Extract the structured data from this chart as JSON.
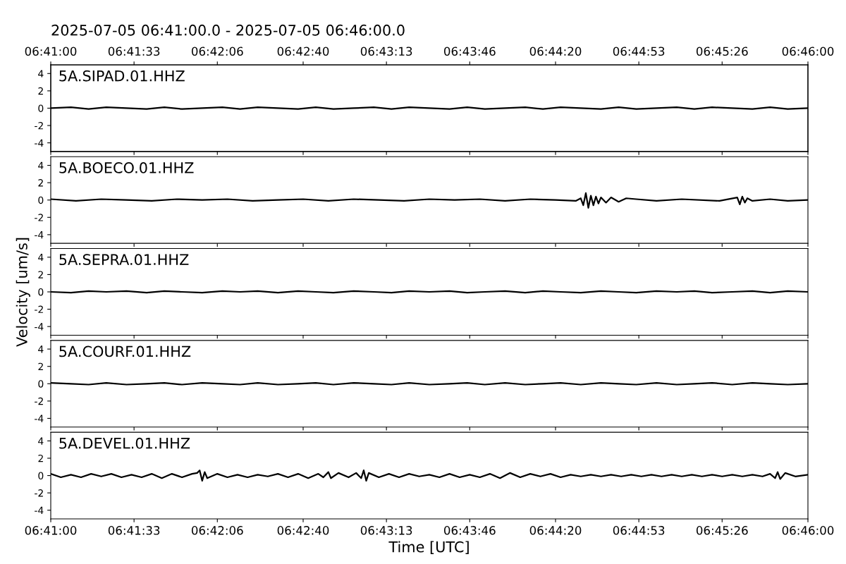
{
  "chart_data": [
    {
      "type": "line",
      "title": "2025-07-05 06:41:00.0 - 2025-07-05 06:46:00.0",
      "xlim": [
        "2025-07-05T06:41:00",
        "2025-07-05T06:46:00"
      ],
      "ylim": [
        -5,
        5
      ],
      "yticks": [
        -4,
        -2,
        0,
        2,
        4
      ],
      "tick_labels": "y",
      "xticks": [
        {
          "value": "2025-07-05T06:41:00",
          "label": null
        },
        {
          "value": "2025-07-05T06:41:33",
          "label": null
        },
        {
          "value": "2025-07-05T06:42:06",
          "label": null
        },
        {
          "value": "2025-07-05T06:42:40",
          "label": null
        },
        {
          "value": "2025-07-05T06:43:13",
          "label": null
        },
        {
          "value": "2025-07-05T06:43:46",
          "label": null
        },
        {
          "value": "2025-07-05T06:44:20",
          "label": null
        },
        {
          "value": "2025-07-05T06:44:53",
          "label": null
        },
        {
          "value": "2025-07-05T06:45:26",
          "label": null
        },
        {
          "value": "2025-07-05T06:46:00",
          "label": null
        }
      ],
      "x2lim": [
        "2025-07-05T06:41:00",
        "2025-07-05T06:46:00"
      ],
      "x2ticks": [
        {
          "value": "2025-07-05T06:41:00",
          "label": "06:41:00"
        },
        {
          "value": "2025-07-05T06:41:33",
          "label": "06:41:33"
        },
        {
          "value": "2025-07-05T06:42:06",
          "label": "06:42:06"
        },
        {
          "value": "2025-07-05T06:42:40",
          "label": "06:42:40"
        },
        {
          "value": "2025-07-05T06:43:13",
          "label": "06:43:13"
        },
        {
          "value": "2025-07-05T06:43:46",
          "label": "06:43:46"
        },
        {
          "value": "2025-07-05T06:44:20",
          "label": "06:44:20"
        },
        {
          "value": "2025-07-05T06:44:53",
          "label": "06:44:53"
        },
        {
          "value": "2025-07-05T06:45:26",
          "label": "06:45:26"
        },
        {
          "value": "2025-07-05T06:46:00",
          "label": "06:46:00"
        }
      ],
      "series": [
        {
          "name": "5A.SIPAD.01.HHZ",
          "color": "#000000",
          "x": [
            "2025-07-05T06:41:00",
            "2025-07-05T06:41:08",
            "2025-07-05T06:41:15",
            "2025-07-05T06:41:22",
            "2025-07-05T06:41:30",
            "2025-07-05T06:41:38",
            "2025-07-05T06:41:45",
            "2025-07-05T06:41:52",
            "2025-07-05T06:42:00",
            "2025-07-05T06:42:08",
            "2025-07-05T06:42:15",
            "2025-07-05T06:42:22",
            "2025-07-05T06:42:30",
            "2025-07-05T06:42:38",
            "2025-07-05T06:42:45",
            "2025-07-05T06:42:52",
            "2025-07-05T06:43:00",
            "2025-07-05T06:43:08",
            "2025-07-05T06:43:15",
            "2025-07-05T06:43:22",
            "2025-07-05T06:43:30",
            "2025-07-05T06:43:38",
            "2025-07-05T06:43:45",
            "2025-07-05T06:43:52",
            "2025-07-05T06:44:00",
            "2025-07-05T06:44:08",
            "2025-07-05T06:44:15",
            "2025-07-05T06:44:22",
            "2025-07-05T06:44:30",
            "2025-07-05T06:44:38",
            "2025-07-05T06:44:45",
            "2025-07-05T06:44:52",
            "2025-07-05T06:45:00",
            "2025-07-05T06:45:08",
            "2025-07-05T06:45:15",
            "2025-07-05T06:45:22",
            "2025-07-05T06:45:30",
            "2025-07-05T06:45:38",
            "2025-07-05T06:45:45",
            "2025-07-05T06:45:52",
            "2025-07-05T06:46:00"
          ],
          "values": [
            0,
            0.1,
            -0.1,
            0.1,
            0,
            -0.1,
            0.1,
            -0.1,
            0,
            0.1,
            -0.1,
            0.1,
            0,
            -0.1,
            0.1,
            -0.1,
            0,
            0.1,
            -0.1,
            0.1,
            0,
            -0.1,
            0.1,
            -0.1,
            0,
            0.1,
            -0.1,
            0.1,
            0,
            -0.1,
            0.1,
            -0.1,
            0,
            0.1,
            -0.1,
            0.1,
            0,
            -0.1,
            0.1,
            -0.1,
            0
          ]
        }
      ]
    },
    {
      "type": "line",
      "xlim": [
        "2025-07-05T06:41:00",
        "2025-07-05T06:46:00"
      ],
      "ylim": [
        -5,
        5
      ],
      "yticks": [
        -4,
        -2,
        0,
        2,
        4
      ],
      "tick_labels": "y",
      "xticks": [
        {
          "value": "2025-07-05T06:41:00",
          "label": null
        },
        {
          "value": "2025-07-05T06:41:33",
          "label": null
        },
        {
          "value": "2025-07-05T06:42:06",
          "label": null
        },
        {
          "value": "2025-07-05T06:42:40",
          "label": null
        },
        {
          "value": "2025-07-05T06:43:13",
          "label": null
        },
        {
          "value": "2025-07-05T06:43:46",
          "label": null
        },
        {
          "value": "2025-07-05T06:44:20",
          "label": null
        },
        {
          "value": "2025-07-05T06:44:53",
          "label": null
        },
        {
          "value": "2025-07-05T06:45:26",
          "label": null
        },
        {
          "value": "2025-07-05T06:46:00",
          "label": null
        }
      ],
      "series": [
        {
          "name": "5A.BOECO.01.HHZ",
          "color": "#000000",
          "x": [
            "2025-07-05T06:41:00",
            "2025-07-05T06:41:10",
            "2025-07-05T06:41:20",
            "2025-07-05T06:41:30",
            "2025-07-05T06:41:40",
            "2025-07-05T06:41:50",
            "2025-07-05T06:42:00",
            "2025-07-05T06:42:10",
            "2025-07-05T06:42:20",
            "2025-07-05T06:42:30",
            "2025-07-05T06:42:40",
            "2025-07-05T06:42:50",
            "2025-07-05T06:43:00",
            "2025-07-05T06:43:10",
            "2025-07-05T06:43:20",
            "2025-07-05T06:43:30",
            "2025-07-05T06:43:40",
            "2025-07-05T06:43:50",
            "2025-07-05T06:44:00",
            "2025-07-05T06:44:10",
            "2025-07-05T06:44:20",
            "2025-07-05T06:44:28",
            "2025-07-05T06:44:30",
            "2025-07-05T06:44:31",
            "2025-07-05T06:44:32",
            "2025-07-05T06:44:33",
            "2025-07-05T06:44:34",
            "2025-07-05T06:44:35",
            "2025-07-05T06:44:36",
            "2025-07-05T06:44:37",
            "2025-07-05T06:44:38",
            "2025-07-05T06:44:40",
            "2025-07-05T06:44:42",
            "2025-07-05T06:44:45",
            "2025-07-05T06:44:48",
            "2025-07-05T06:44:52",
            "2025-07-05T06:45:00",
            "2025-07-05T06:45:10",
            "2025-07-05T06:45:25",
            "2025-07-05T06:45:32",
            "2025-07-05T06:45:33",
            "2025-07-05T06:45:34",
            "2025-07-05T06:45:35",
            "2025-07-05T06:45:36",
            "2025-07-05T06:45:38",
            "2025-07-05T06:45:45",
            "2025-07-05T06:45:52",
            "2025-07-05T06:46:00"
          ],
          "values": [
            0.1,
            -0.1,
            0.1,
            0,
            -0.1,
            0.1,
            0,
            0.1,
            -0.1,
            0,
            0.1,
            -0.1,
            0.1,
            0,
            -0.1,
            0.1,
            0,
            0.1,
            -0.1,
            0.1,
            0,
            -0.1,
            0.2,
            -0.6,
            0.8,
            -0.9,
            0.5,
            -0.6,
            0.4,
            -0.4,
            0.3,
            -0.3,
            0.3,
            -0.2,
            0.2,
            0.1,
            -0.1,
            0.1,
            -0.1,
            0.3,
            -0.5,
            0.4,
            -0.3,
            0.2,
            -0.1,
            0.1,
            -0.1,
            0
          ]
        }
      ]
    },
    {
      "type": "line",
      "xlim": [
        "2025-07-05T06:41:00",
        "2025-07-05T06:46:00"
      ],
      "ylim": [
        -5,
        5
      ],
      "yticks": [
        -4,
        -2,
        0,
        2,
        4
      ],
      "tick_labels": "y",
      "ylabel": "Velocity [um/s]",
      "xticks": [
        {
          "value": "2025-07-05T06:41:00",
          "label": null
        },
        {
          "value": "2025-07-05T06:41:33",
          "label": null
        },
        {
          "value": "2025-07-05T06:42:06",
          "label": null
        },
        {
          "value": "2025-07-05T06:42:40",
          "label": null
        },
        {
          "value": "2025-07-05T06:43:13",
          "label": null
        },
        {
          "value": "2025-07-05T06:43:46",
          "label": null
        },
        {
          "value": "2025-07-05T06:44:20",
          "label": null
        },
        {
          "value": "2025-07-05T06:44:53",
          "label": null
        },
        {
          "value": "2025-07-05T06:45:26",
          "label": null
        },
        {
          "value": "2025-07-05T06:46:00",
          "label": null
        }
      ],
      "series": [
        {
          "name": "5A.SEPRA.01.HHZ",
          "color": "#000000",
          "x": [
            "2025-07-05T06:41:00",
            "2025-07-05T06:41:08",
            "2025-07-05T06:41:15",
            "2025-07-05T06:41:22",
            "2025-07-05T06:41:30",
            "2025-07-05T06:41:38",
            "2025-07-05T06:41:45",
            "2025-07-05T06:41:52",
            "2025-07-05T06:42:00",
            "2025-07-05T06:42:08",
            "2025-07-05T06:42:15",
            "2025-07-05T06:42:22",
            "2025-07-05T06:42:30",
            "2025-07-05T06:42:38",
            "2025-07-05T06:42:45",
            "2025-07-05T06:42:52",
            "2025-07-05T06:43:00",
            "2025-07-05T06:43:08",
            "2025-07-05T06:43:15",
            "2025-07-05T06:43:22",
            "2025-07-05T06:43:30",
            "2025-07-05T06:43:38",
            "2025-07-05T06:43:45",
            "2025-07-05T06:43:52",
            "2025-07-05T06:44:00",
            "2025-07-05T06:44:08",
            "2025-07-05T06:44:15",
            "2025-07-05T06:44:22",
            "2025-07-05T06:44:30",
            "2025-07-05T06:44:38",
            "2025-07-05T06:44:45",
            "2025-07-05T06:44:52",
            "2025-07-05T06:45:00",
            "2025-07-05T06:45:08",
            "2025-07-05T06:45:15",
            "2025-07-05T06:45:22",
            "2025-07-05T06:45:30",
            "2025-07-05T06:45:38",
            "2025-07-05T06:45:45",
            "2025-07-05T06:45:52",
            "2025-07-05T06:46:00"
          ],
          "values": [
            0,
            -0.1,
            0.1,
            0,
            0.1,
            -0.1,
            0.1,
            0,
            -0.1,
            0.1,
            0,
            0.1,
            -0.1,
            0.1,
            0,
            -0.1,
            0.1,
            0,
            -0.1,
            0.1,
            0,
            0.1,
            -0.1,
            0,
            0.1,
            -0.1,
            0.1,
            0,
            -0.1,
            0.1,
            0,
            -0.1,
            0.1,
            0,
            0.1,
            -0.1,
            0,
            0.1,
            -0.1,
            0.1,
            0
          ]
        }
      ]
    },
    {
      "type": "line",
      "xlim": [
        "2025-07-05T06:41:00",
        "2025-07-05T06:46:00"
      ],
      "ylim": [
        -5,
        5
      ],
      "yticks": [
        -4,
        -2,
        0,
        2,
        4
      ],
      "tick_labels": "y",
      "xticks": [
        {
          "value": "2025-07-05T06:41:00",
          "label": null
        },
        {
          "value": "2025-07-05T06:41:33",
          "label": null
        },
        {
          "value": "2025-07-05T06:42:06",
          "label": null
        },
        {
          "value": "2025-07-05T06:42:40",
          "label": null
        },
        {
          "value": "2025-07-05T06:43:13",
          "label": null
        },
        {
          "value": "2025-07-05T06:43:46",
          "label": null
        },
        {
          "value": "2025-07-05T06:44:20",
          "label": null
        },
        {
          "value": "2025-07-05T06:44:53",
          "label": null
        },
        {
          "value": "2025-07-05T06:45:26",
          "label": null
        },
        {
          "value": "2025-07-05T06:46:00",
          "label": null
        }
      ],
      "series": [
        {
          "name": "5A.COURF.01.HHZ",
          "color": "#000000",
          "x": [
            "2025-07-05T06:41:00",
            "2025-07-05T06:41:08",
            "2025-07-05T06:41:15",
            "2025-07-05T06:41:22",
            "2025-07-05T06:41:30",
            "2025-07-05T06:41:38",
            "2025-07-05T06:41:45",
            "2025-07-05T06:41:52",
            "2025-07-05T06:42:00",
            "2025-07-05T06:42:08",
            "2025-07-05T06:42:15",
            "2025-07-05T06:42:22",
            "2025-07-05T06:42:30",
            "2025-07-05T06:42:38",
            "2025-07-05T06:42:45",
            "2025-07-05T06:42:52",
            "2025-07-05T06:43:00",
            "2025-07-05T06:43:08",
            "2025-07-05T06:43:15",
            "2025-07-05T06:43:22",
            "2025-07-05T06:43:30",
            "2025-07-05T06:43:38",
            "2025-07-05T06:43:45",
            "2025-07-05T06:43:52",
            "2025-07-05T06:44:00",
            "2025-07-05T06:44:08",
            "2025-07-05T06:44:15",
            "2025-07-05T06:44:22",
            "2025-07-05T06:44:30",
            "2025-07-05T06:44:38",
            "2025-07-05T06:44:45",
            "2025-07-05T06:44:52",
            "2025-07-05T06:45:00",
            "2025-07-05T06:45:08",
            "2025-07-05T06:45:15",
            "2025-07-05T06:45:22",
            "2025-07-05T06:45:30",
            "2025-07-05T06:45:38",
            "2025-07-05T06:45:45",
            "2025-07-05T06:45:52",
            "2025-07-05T06:46:00"
          ],
          "values": [
            0.1,
            0,
            -0.1,
            0.1,
            -0.1,
            0,
            0.1,
            -0.1,
            0.1,
            0,
            -0.1,
            0.1,
            -0.1,
            0,
            0.1,
            -0.1,
            0.1,
            0,
            -0.1,
            0.1,
            -0.1,
            0,
            0.1,
            -0.1,
            0.1,
            -0.1,
            0,
            0.1,
            -0.1,
            0.1,
            0,
            -0.1,
            0.1,
            -0.1,
            0,
            0.1,
            -0.1,
            0.1,
            0,
            -0.1,
            0
          ]
        }
      ]
    },
    {
      "type": "line",
      "xlim": [
        "2025-07-05T06:41:00",
        "2025-07-05T06:46:00"
      ],
      "ylim": [
        -5,
        5
      ],
      "yticks": [
        -4,
        -2,
        0,
        2,
        4
      ],
      "xlabel": "Time [UTC]",
      "xticks": [
        {
          "value": "2025-07-05T06:41:00",
          "label": "06:41:00"
        },
        {
          "value": "2025-07-05T06:41:33",
          "label": "06:41:33"
        },
        {
          "value": "2025-07-05T06:42:06",
          "label": "06:42:06"
        },
        {
          "value": "2025-07-05T06:42:40",
          "label": "06:42:40"
        },
        {
          "value": "2025-07-05T06:43:13",
          "label": "06:43:13"
        },
        {
          "value": "2025-07-05T06:43:46",
          "label": "06:43:46"
        },
        {
          "value": "2025-07-05T06:44:20",
          "label": "06:44:20"
        },
        {
          "value": "2025-07-05T06:44:53",
          "label": "06:44:53"
        },
        {
          "value": "2025-07-05T06:45:26",
          "label": "06:45:26"
        },
        {
          "value": "2025-07-05T06:46:00",
          "label": "06:46:00"
        }
      ],
      "series": [
        {
          "name": "5A.DEVEL.01.HHZ",
          "color": "#000000",
          "x": [
            "2025-07-05T06:41:00",
            "2025-07-05T06:41:04",
            "2025-07-05T06:41:08",
            "2025-07-05T06:41:12",
            "2025-07-05T06:41:16",
            "2025-07-05T06:41:20",
            "2025-07-05T06:41:24",
            "2025-07-05T06:41:28",
            "2025-07-05T06:41:32",
            "2025-07-05T06:41:36",
            "2025-07-05T06:41:40",
            "2025-07-05T06:41:44",
            "2025-07-05T06:41:48",
            "2025-07-05T06:41:52",
            "2025-07-05T06:41:56",
            "2025-07-05T06:41:58",
            "2025-07-05T06:41:59",
            "2025-07-05T06:42:00",
            "2025-07-05T06:42:01",
            "2025-07-05T06:42:02",
            "2025-07-05T06:42:06",
            "2025-07-05T06:42:10",
            "2025-07-05T06:42:14",
            "2025-07-05T06:42:18",
            "2025-07-05T06:42:22",
            "2025-07-05T06:42:26",
            "2025-07-05T06:42:30",
            "2025-07-05T06:42:34",
            "2025-07-05T06:42:38",
            "2025-07-05T06:42:42",
            "2025-07-05T06:42:46",
            "2025-07-05T06:42:48",
            "2025-07-05T06:42:50",
            "2025-07-05T06:42:51",
            "2025-07-05T06:42:54",
            "2025-07-05T06:42:58",
            "2025-07-05T06:43:01",
            "2025-07-05T06:43:03",
            "2025-07-05T06:43:04",
            "2025-07-05T06:43:05",
            "2025-07-05T06:43:06",
            "2025-07-05T06:43:10",
            "2025-07-05T06:43:14",
            "2025-07-05T06:43:18",
            "2025-07-05T06:43:22",
            "2025-07-05T06:43:26",
            "2025-07-05T06:43:30",
            "2025-07-05T06:43:34",
            "2025-07-05T06:43:38",
            "2025-07-05T06:43:42",
            "2025-07-05T06:43:46",
            "2025-07-05T06:43:50",
            "2025-07-05T06:43:54",
            "2025-07-05T06:43:58",
            "2025-07-05T06:44:02",
            "2025-07-05T06:44:06",
            "2025-07-05T06:44:10",
            "2025-07-05T06:44:14",
            "2025-07-05T06:44:18",
            "2025-07-05T06:44:22",
            "2025-07-05T06:44:26",
            "2025-07-05T06:44:30",
            "2025-07-05T06:44:34",
            "2025-07-05T06:44:38",
            "2025-07-05T06:44:42",
            "2025-07-05T06:44:46",
            "2025-07-05T06:44:50",
            "2025-07-05T06:44:54",
            "2025-07-05T06:44:58",
            "2025-07-05T06:45:02",
            "2025-07-05T06:45:06",
            "2025-07-05T06:45:10",
            "2025-07-05T06:45:14",
            "2025-07-05T06:45:18",
            "2025-07-05T06:45:22",
            "2025-07-05T06:45:26",
            "2025-07-05T06:45:30",
            "2025-07-05T06:45:34",
            "2025-07-05T06:45:38",
            "2025-07-05T06:45:42",
            "2025-07-05T06:45:45",
            "2025-07-05T06:45:47",
            "2025-07-05T06:45:48",
            "2025-07-05T06:45:49",
            "2025-07-05T06:45:51",
            "2025-07-05T06:45:55",
            "2025-07-05T06:46:00"
          ],
          "values": [
            0.2,
            -0.2,
            0.1,
            -0.2,
            0.2,
            -0.1,
            0.2,
            -0.2,
            0.1,
            -0.2,
            0.2,
            -0.3,
            0.2,
            -0.2,
            0.2,
            0.3,
            0.6,
            -0.6,
            0.4,
            -0.3,
            0.2,
            -0.2,
            0.1,
            -0.2,
            0.1,
            -0.1,
            0.2,
            -0.2,
            0.2,
            -0.3,
            0.2,
            -0.2,
            0.4,
            -0.3,
            0.3,
            -0.2,
            0.3,
            -0.3,
            0.6,
            -0.6,
            0.3,
            -0.2,
            0.2,
            -0.2,
            0.2,
            -0.1,
            0.1,
            -0.2,
            0.2,
            -0.2,
            0.1,
            -0.2,
            0.2,
            -0.3,
            0.3,
            -0.2,
            0.2,
            -0.1,
            0.2,
            -0.2,
            0.1,
            -0.1,
            0.1,
            -0.1,
            0.1,
            -0.1,
            0.1,
            -0.1,
            0.1,
            -0.1,
            0.1,
            -0.1,
            0.1,
            -0.1,
            0.1,
            -0.1,
            0.1,
            -0.1,
            0.1,
            -0.1,
            0.2,
            -0.3,
            0.4,
            -0.4,
            0.3,
            -0.1,
            0.1
          ]
        }
      ]
    }
  ]
}
